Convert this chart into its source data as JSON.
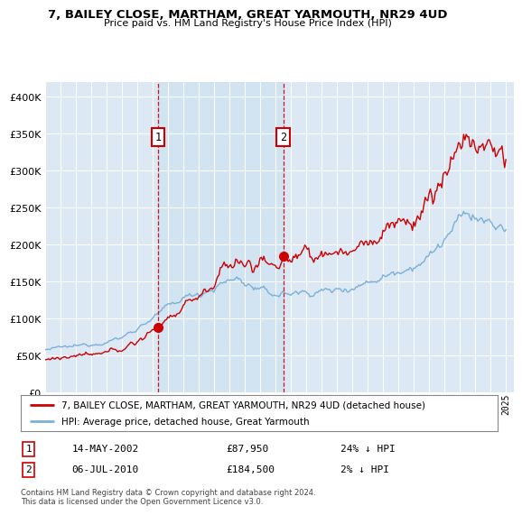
{
  "title": "7, BAILEY CLOSE, MARTHAM, GREAT YARMOUTH, NR29 4UD",
  "subtitle": "Price paid vs. HM Land Registry's House Price Index (HPI)",
  "ylim": [
    0,
    420000
  ],
  "yticks": [
    0,
    50000,
    100000,
    150000,
    200000,
    250000,
    300000,
    350000,
    400000
  ],
  "ytick_labels": [
    "£0",
    "£50K",
    "£100K",
    "£150K",
    "£200K",
    "£250K",
    "£300K",
    "£350K",
    "£400K"
  ],
  "bg_color": "#dce9f5",
  "grid_color": "#ffffff",
  "sale1": {
    "date_num": 2002.37,
    "price": 87950,
    "label": "1",
    "date_str": "14-MAY-2002",
    "price_str": "£87,950",
    "pct": "24% ↓ HPI"
  },
  "sale2": {
    "date_num": 2010.51,
    "price": 184500,
    "label": "2",
    "date_str": "06-JUL-2010",
    "price_str": "£184,500",
    "pct": "2% ↓ HPI"
  },
  "legend_property": "7, BAILEY CLOSE, MARTHAM, GREAT YARMOUTH, NR29 4UD (detached house)",
  "legend_hpi": "HPI: Average price, detached house, Great Yarmouth",
  "footnote": "Contains HM Land Registry data © Crown copyright and database right 2024.\nThis data is licensed under the Open Government Licence v3.0.",
  "property_line_color": "#cc0000",
  "hpi_line_color": "#7ab0d8",
  "dashed_line_color": "#cc0000",
  "box_color": "#cc0000",
  "shade_color": "#cce0f0"
}
